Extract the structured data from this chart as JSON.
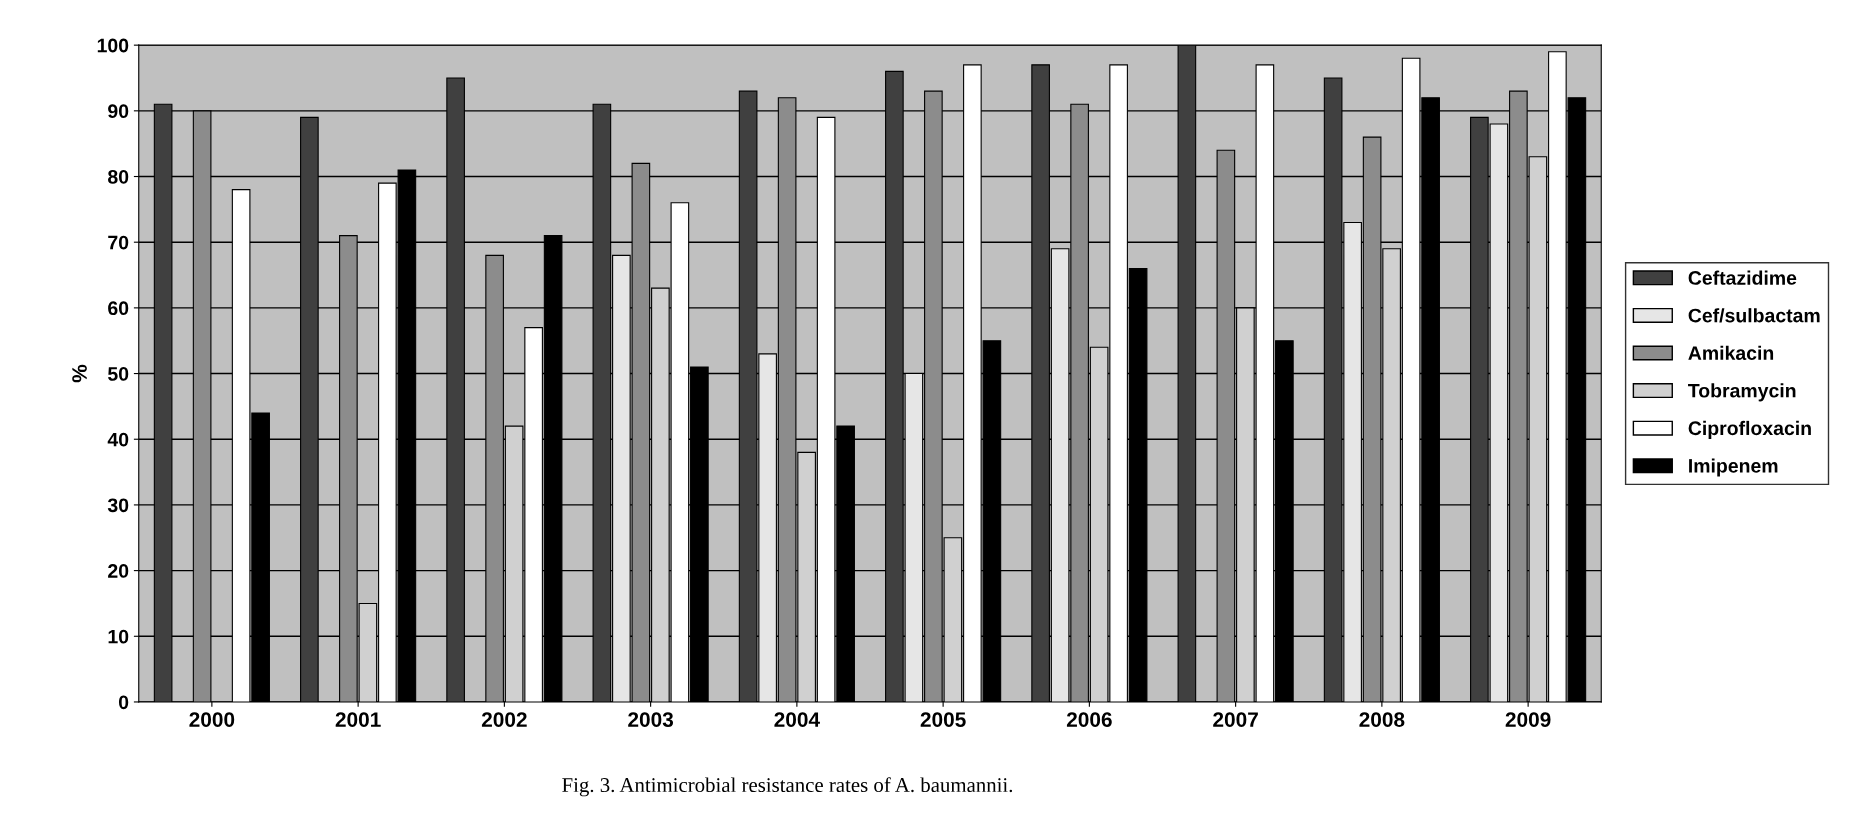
{
  "chart_data": {
    "type": "bar",
    "ylabel": "%",
    "categories": [
      "2000",
      "2001",
      "2002",
      "2003",
      "2004",
      "2005",
      "2006",
      "2007",
      "2008",
      "2009"
    ],
    "series": [
      {
        "name": "Ceftazidime",
        "color": "#404040",
        "values": [
          91,
          89,
          95,
          91,
          93,
          96,
          97,
          100,
          95,
          89
        ]
      },
      {
        "name": "Cef/sulbactam",
        "color": "#e6e6e6",
        "values": [
          null,
          null,
          null,
          68,
          53,
          50,
          69,
          null,
          73,
          88
        ]
      },
      {
        "name": "Amikacin",
        "color": "#8c8c8c",
        "values": [
          90,
          71,
          68,
          82,
          92,
          93,
          91,
          84,
          86,
          93
        ]
      },
      {
        "name": "Tobramycin",
        "color": "#d0d0d0",
        "values": [
          null,
          15,
          42,
          63,
          38,
          25,
          54,
          60,
          69,
          83
        ]
      },
      {
        "name": "Ciprofloxacin",
        "color": "#ffffff",
        "values": [
          78,
          79,
          57,
          76,
          89,
          97,
          97,
          97,
          98,
          99
        ]
      },
      {
        "name": "Imipenem",
        "color": "#000000",
        "values": [
          44,
          81,
          71,
          51,
          42,
          55,
          66,
          55,
          92,
          92
        ]
      }
    ],
    "ylim": [
      0,
      100
    ],
    "yticks": [
      0,
      10,
      20,
      30,
      40,
      50,
      60,
      70,
      80,
      90,
      100
    ],
    "grid": "y",
    "legend": "right",
    "annotations": [
      "Fig. 3. Antimicrobial resistance rates of A. baumannii."
    ]
  }
}
